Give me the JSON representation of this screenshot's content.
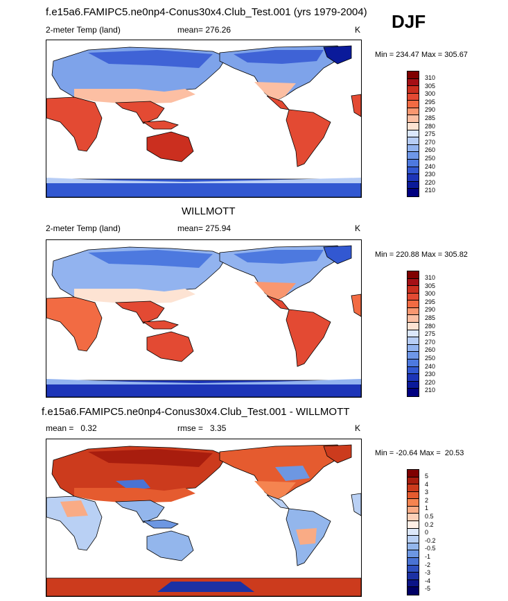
{
  "season": "DJF",
  "colors": {
    "temp": [
      "#800000",
      "#a50f15",
      "#cb2f1f",
      "#e34a33",
      "#f26b43",
      "#f99770",
      "#fcbfa3",
      "#fde3d3",
      "#dbe7fb",
      "#b7cdf5",
      "#92b3ef",
      "#6e97e8",
      "#4d79df",
      "#3258d1",
      "#1d35b8",
      "#0a1a9a",
      "#000080"
    ],
    "diff": [
      "#7f0000",
      "#a81d0e",
      "#cc3b1d",
      "#e55b2f",
      "#f58450",
      "#f9ab85",
      "#fcd0b8",
      "#ffefe6",
      "#dde8fa",
      "#b9d0f4",
      "#93b6ec",
      "#6d97e2",
      "#4a73d4",
      "#2f50c0",
      "#1c31a4",
      "#0b1487",
      "#000065"
    ]
  },
  "chart_data": [
    {
      "type": "heatmap",
      "title": "f.e15a6.FAMIPC5.ne0np4-Conus30x4.Club_Test.001 (yrs 1979-2004)",
      "variable": "2-meter Temp (land)",
      "mean_text": "mean= 276.26",
      "units": "K",
      "minmax_text": "Min = 234.47 Max = 305.67",
      "levels": [
        "310",
        "305",
        "300",
        "295",
        "290",
        "285",
        "280",
        "275",
        "270",
        "260",
        "250",
        "240",
        "230",
        "220",
        "210"
      ],
      "palette": "temp"
    },
    {
      "type": "heatmap",
      "title": "WILLMOTT",
      "variable": "2-meter Temp (land)",
      "mean_text": "mean= 275.94",
      "units": "K",
      "minmax_text": "Min = 220.88 Max = 305.82",
      "levels": [
        "310",
        "305",
        "300",
        "295",
        "290",
        "285",
        "280",
        "275",
        "270",
        "260",
        "250",
        "240",
        "230",
        "220",
        "210"
      ],
      "palette": "temp"
    },
    {
      "type": "heatmap",
      "title": "f.e15a6.FAMIPC5.ne0np4-Conus30x4.Club_Test.001 - WILLMOTT",
      "mean_text": "mean =   0.32",
      "rmse_text": "rmse =   3.35",
      "units": "K",
      "minmax_text": "Min = -20.64 Max =  20.53",
      "levels": [
        "5",
        "4",
        "3",
        "2",
        "1",
        "0.5",
        "0.2",
        "0",
        "-0.2",
        "-0.5",
        "-1",
        "-2",
        "-3",
        "-4",
        "-5"
      ],
      "palette": "diff"
    }
  ]
}
